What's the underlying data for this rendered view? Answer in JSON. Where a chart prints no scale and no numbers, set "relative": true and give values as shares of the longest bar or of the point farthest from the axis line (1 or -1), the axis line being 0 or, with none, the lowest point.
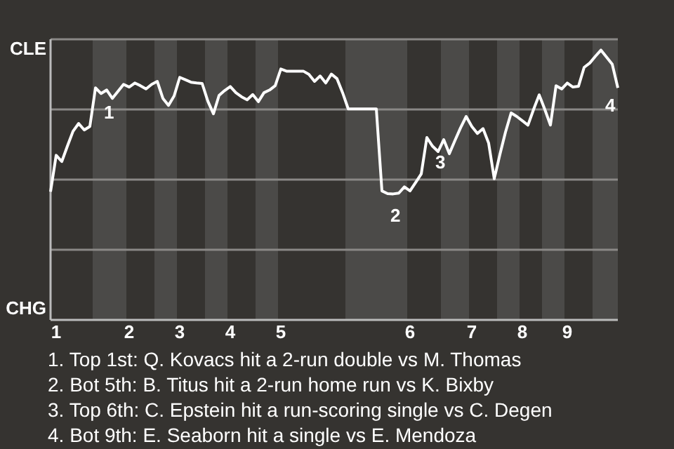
{
  "chart_data": {
    "type": "line",
    "relative": true,
    "categories": [
      null,
      "1",
      null,
      null,
      null,
      null,
      null,
      null,
      null,
      null,
      null,
      null,
      null,
      null,
      "2",
      null,
      null,
      null,
      null,
      null,
      null,
      null,
      null,
      "3",
      null,
      null,
      null,
      null,
      null,
      null,
      null,
      null,
      "4",
      null,
      null,
      null,
      null,
      null,
      null,
      null,
      null,
      "5",
      null,
      null,
      null,
      null,
      null,
      null,
      null,
      null,
      null,
      null,
      null,
      null,
      null,
      null,
      null,
      null,
      null,
      null,
      null,
      null,
      null,
      null,
      "6",
      null,
      null,
      null,
      null,
      null,
      null,
      null,
      null,
      null,
      null,
      "7",
      null,
      null,
      null,
      null,
      null,
      null,
      null,
      null,
      "8",
      null,
      null,
      null,
      null,
      null,
      null,
      null,
      "9",
      null,
      null,
      null,
      null,
      null,
      null,
      null,
      null,
      null
    ],
    "series": [
      {
        "color": "#ffffff",
        "values": [
          0.475,
          0.61,
          0.587,
          0.644,
          0.699,
          0.728,
          0.704,
          0.717,
          0.86,
          0.839,
          0.852,
          0.821,
          0.847,
          0.873,
          0.863,
          0.878,
          0.868,
          0.856,
          0.873,
          0.884,
          0.821,
          0.795,
          0.83,
          0.899,
          0.89,
          0.881,
          0.878,
          0.876,
          0.811,
          0.764,
          0.832,
          0.85,
          0.865,
          0.842,
          0.827,
          0.816,
          0.835,
          0.809,
          0.842,
          0.852,
          0.868,
          0.93,
          0.922,
          0.922,
          0.922,
          0.922,
          0.91,
          0.884,
          0.904,
          0.878,
          0.911,
          0.894,
          0.842,
          0.782,
          0.782,
          0.782,
          0.782,
          0.782,
          0.782,
          0.478,
          0.468,
          0.467,
          0.47,
          0.493,
          0.478,
          0.509,
          0.541,
          0.676,
          0.644,
          0.624,
          0.668,
          0.616,
          0.665,
          0.712,
          0.754,
          0.717,
          0.691,
          0.709,
          0.655,
          0.523,
          0.613,
          0.696,
          0.767,
          0.754,
          0.738,
          0.722,
          0.78,
          0.834,
          0.78,
          0.722,
          0.868,
          0.856,
          0.878,
          0.863,
          0.866,
          0.936,
          0.952,
          0.977,
          1,
          0.974,
          0.948,
          0.86
        ]
      }
    ],
    "grid": true,
    "marker": "none",
    "line_style": "solid",
    "annotations": [
      {
        "text": "1",
        "y": 0.86
      },
      {
        "text": "2",
        "y": 0.478
      },
      {
        "text": "3",
        "y": 0.676
      },
      {
        "text": "4",
        "y": 0.86
      },
      "CLE",
      "CHG",
      "1. Top 1st: Q. Kovacs hit a 2-run double vs M. Thomas",
      "2. Bot 5th: B. Titus hit a 2-run home run vs K. Bixby",
      "3. Top 6th: C. Epstein hit a run-scoring single vs C. Degen",
      "4. Bot 9th: E. Seaborn hit a single vs E. Mendoza"
    ]
  }
}
